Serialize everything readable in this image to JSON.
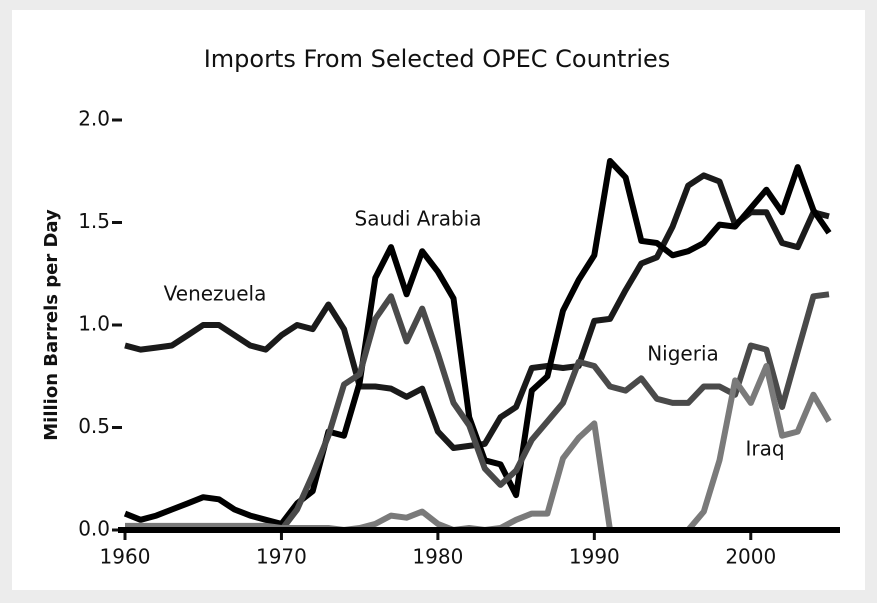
{
  "chart_data": {
    "type": "line",
    "title": "Imports From Selected OPEC Countries",
    "y_label": "Million Barrels per Day",
    "x": [
      1960,
      1961,
      1962,
      1963,
      1964,
      1965,
      1966,
      1967,
      1968,
      1969,
      1970,
      1971,
      1972,
      1973,
      1974,
      1975,
      1976,
      1977,
      1978,
      1979,
      1980,
      1981,
      1982,
      1983,
      1984,
      1985,
      1986,
      1987,
      1988,
      1989,
      1990,
      1991,
      1992,
      1993,
      1994,
      1995,
      1996,
      1997,
      1998,
      1999,
      2000,
      2001,
      2002,
      2003,
      2004,
      2005
    ],
    "xlim": [
      1960,
      2005
    ],
    "xticks": [
      1960,
      1970,
      1980,
      1990,
      2000
    ],
    "ylim": [
      0,
      2
    ],
    "yticks": [
      {
        "value": 0,
        "label": "0.0"
      },
      0.5,
      {
        "value": 1,
        "label": "1.0"
      },
      1.5,
      {
        "value": 2,
        "label": "2.0"
      }
    ],
    "series": [
      {
        "name": "Venezuela",
        "color": "#1a1a1a",
        "values": [
          0.9,
          0.88,
          0.89,
          0.9,
          0.95,
          1.0,
          1.0,
          0.95,
          0.9,
          0.88,
          0.95,
          1.0,
          0.98,
          1.1,
          0.98,
          0.7,
          0.7,
          0.69,
          0.65,
          0.69,
          0.48,
          0.4,
          0.41,
          0.42,
          0.55,
          0.6,
          0.79,
          0.8,
          0.79,
          0.8,
          1.02,
          1.03,
          1.17,
          1.3,
          1.33,
          1.48,
          1.68,
          1.73,
          1.7,
          1.49,
          1.55,
          1.55,
          1.4,
          1.38,
          1.55,
          1.53
        ]
      },
      {
        "name": "Saudi Arabia",
        "color": "#000000",
        "values": [
          0.08,
          0.05,
          0.07,
          0.1,
          0.13,
          0.16,
          0.15,
          0.1,
          0.07,
          0.05,
          0.03,
          0.13,
          0.19,
          0.48,
          0.46,
          0.72,
          1.23,
          1.38,
          1.15,
          1.36,
          1.26,
          1.13,
          0.55,
          0.34,
          0.32,
          0.17,
          0.68,
          0.75,
          1.07,
          1.22,
          1.34,
          1.8,
          1.72,
          1.41,
          1.4,
          1.34,
          1.36,
          1.4,
          1.49,
          1.48,
          1.57,
          1.66,
          1.55,
          1.77,
          1.56,
          1.45
        ]
      },
      {
        "name": "Nigeria",
        "color": "#4a4a4a",
        "values": [
          0,
          0,
          0,
          0,
          0,
          0,
          0,
          0,
          0,
          0,
          0,
          0.1,
          0.27,
          0.46,
          0.71,
          0.76,
          1.03,
          1.14,
          0.92,
          1.08,
          0.86,
          0.62,
          0.51,
          0.3,
          0.22,
          0.29,
          0.44,
          0.53,
          0.62,
          0.82,
          0.8,
          0.7,
          0.68,
          0.74,
          0.64,
          0.62,
          0.62,
          0.7,
          0.7,
          0.66,
          0.9,
          0.88,
          0.6,
          0.87,
          1.14,
          1.15
        ]
      },
      {
        "name": "Iraq",
        "color": "#7a7a7a",
        "values": [
          0.02,
          0.02,
          0.02,
          0.02,
          0.02,
          0.02,
          0.02,
          0.02,
          0.02,
          0.02,
          0.01,
          0.01,
          0.01,
          0.01,
          0,
          0.01,
          0.03,
          0.07,
          0.06,
          0.09,
          0.03,
          0,
          0.01,
          0,
          0.01,
          0.05,
          0.08,
          0.08,
          0.35,
          0.45,
          0.52,
          0,
          0,
          0,
          0,
          0,
          0,
          0.09,
          0.34,
          0.73,
          0.62,
          0.8,
          0.46,
          0.48,
          0.66,
          0.53
        ]
      }
    ]
  }
}
